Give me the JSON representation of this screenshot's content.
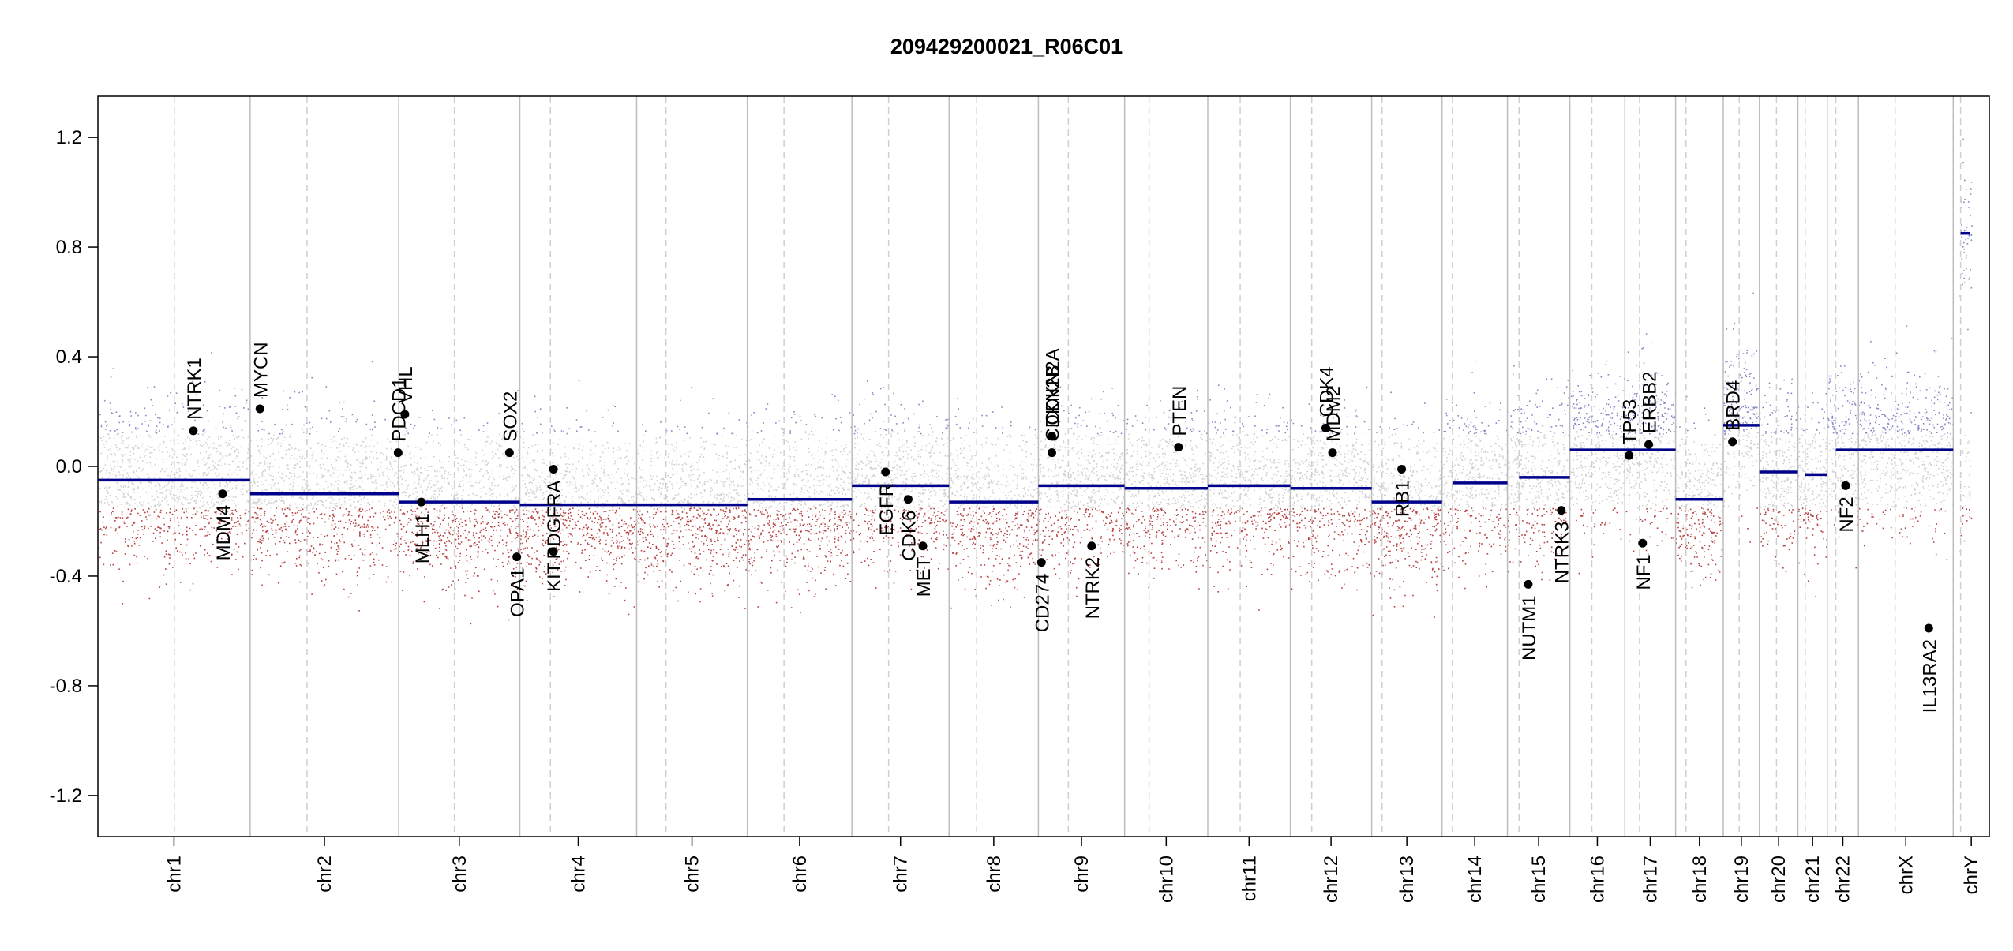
{
  "chart_data": {
    "type": "scatter",
    "title": "209429200021_R06C01",
    "xlabel": "",
    "ylabel": "",
    "ylim": [
      -1.35,
      1.35
    ],
    "yticks": [
      1.2,
      0.8,
      0.4,
      0.0,
      -0.4,
      -0.8,
      -1.2
    ],
    "ytick_labels": [
      "1.2",
      "0.8",
      "0.4",
      "0.0",
      "-0.4",
      "-0.8",
      "-1.2"
    ],
    "colors": {
      "high": "#5b5fb0",
      "neutral": "#a9a9a9",
      "low": "#a82020",
      "segment": "#00008b",
      "gene_marker": "#000000",
      "chrom_line": "#bdbdbd",
      "centromere_line": "#cfcfcf"
    },
    "chromosomes": [
      {
        "name": "chr1",
        "size": 249,
        "cen": 125,
        "seg": [
          [
            0,
            249,
            -0.05
          ]
        ]
      },
      {
        "name": "chr2",
        "size": 243,
        "cen": 93,
        "seg": [
          [
            0,
            243,
            -0.1
          ]
        ]
      },
      {
        "name": "chr3",
        "size": 198,
        "cen": 91,
        "seg": [
          [
            0,
            198,
            -0.13
          ]
        ]
      },
      {
        "name": "chr4",
        "size": 191,
        "cen": 50,
        "seg": [
          [
            0,
            191,
            -0.14
          ]
        ]
      },
      {
        "name": "chr5",
        "size": 181,
        "cen": 48,
        "seg": [
          [
            0,
            181,
            -0.14
          ]
        ]
      },
      {
        "name": "chr6",
        "size": 171,
        "cen": 60,
        "seg": [
          [
            0,
            171,
            -0.12
          ]
        ]
      },
      {
        "name": "chr7",
        "size": 159,
        "cen": 60,
        "seg": [
          [
            0,
            159,
            -0.07
          ]
        ]
      },
      {
        "name": "chr8",
        "size": 146,
        "cen": 45,
        "seg": [
          [
            0,
            146,
            -0.13
          ]
        ]
      },
      {
        "name": "chr9",
        "size": 141,
        "cen": 49,
        "seg": [
          [
            0,
            141,
            -0.07
          ]
        ]
      },
      {
        "name": "chr10",
        "size": 136,
        "cen": 40,
        "seg": [
          [
            0,
            136,
            -0.08
          ]
        ]
      },
      {
        "name": "chr11",
        "size": 135,
        "cen": 53,
        "seg": [
          [
            0,
            135,
            -0.07
          ]
        ]
      },
      {
        "name": "chr12",
        "size": 133,
        "cen": 35,
        "seg": [
          [
            0,
            133,
            -0.08
          ]
        ]
      },
      {
        "name": "chr13",
        "size": 115,
        "cen": 17,
        "seg": [
          [
            0,
            115,
            -0.13
          ]
        ]
      },
      {
        "name": "chr14",
        "size": 107,
        "cen": 17,
        "seg": [
          [
            17,
            107,
            -0.06
          ]
        ]
      },
      {
        "name": "chr15",
        "size": 102,
        "cen": 19,
        "seg": [
          [
            19,
            102,
            -0.04
          ]
        ]
      },
      {
        "name": "chr16",
        "size": 90,
        "cen": 36,
        "seg": [
          [
            0,
            90,
            0.06
          ]
        ]
      },
      {
        "name": "chr17",
        "size": 83,
        "cen": 24,
        "seg": [
          [
            0,
            83,
            0.06
          ]
        ]
      },
      {
        "name": "chr18",
        "size": 78,
        "cen": 17,
        "seg": [
          [
            0,
            78,
            -0.12
          ]
        ]
      },
      {
        "name": "chr19",
        "size": 59,
        "cen": 26,
        "seg": [
          [
            0,
            59,
            0.15
          ]
        ]
      },
      {
        "name": "chr20",
        "size": 63,
        "cen": 28,
        "seg": [
          [
            0,
            63,
            -0.02
          ]
        ]
      },
      {
        "name": "chr21",
        "size": 48,
        "cen": 12,
        "seg": [
          [
            12,
            48,
            -0.03
          ]
        ]
      },
      {
        "name": "chr22",
        "size": 51,
        "cen": 14,
        "seg": [
          [
            14,
            51,
            0.06
          ]
        ]
      },
      {
        "name": "chrX",
        "size": 155,
        "cen": 60,
        "seg": [
          [
            0,
            155,
            0.06
          ]
        ]
      },
      {
        "name": "chrY",
        "size": 59,
        "cen": 12,
        "seg": [
          [
            12,
            27,
            0.85
          ]
        ]
      }
    ],
    "genes": [
      {
        "name": "NTRK1",
        "chr": "chr1",
        "pos": 156,
        "value": 0.13,
        "label": "above"
      },
      {
        "name": "MDM4",
        "chr": "chr1",
        "pos": 204,
        "value": -0.1,
        "label": "below"
      },
      {
        "name": "MYCN",
        "chr": "chr2",
        "pos": 16,
        "value": 0.21,
        "label": "above"
      },
      {
        "name": "PDCD1",
        "chr": "chr2",
        "pos": 242,
        "value": 0.05,
        "label": "above"
      },
      {
        "name": "VHL",
        "chr": "chr3",
        "pos": 10,
        "value": 0.19,
        "label": "above"
      },
      {
        "name": "MLH1",
        "chr": "chr3",
        "pos": 37,
        "value": -0.13,
        "label": "below"
      },
      {
        "name": "SOX2",
        "chr": "chr3",
        "pos": 181,
        "value": 0.05,
        "label": "above"
      },
      {
        "name": "OPA1",
        "chr": "chr3",
        "pos": 193,
        "value": -0.33,
        "label": "below"
      },
      {
        "name": "KIT",
        "chr": "chr4",
        "pos": 55,
        "value": -0.31,
        "label": "below"
      },
      {
        "name": "PDGFRA",
        "chr": "chr4",
        "pos": 55,
        "value": -0.01,
        "label": "below"
      },
      {
        "name": "EGFR",
        "chr": "chr7",
        "pos": 55,
        "value": -0.02,
        "label": "below"
      },
      {
        "name": "CDK6",
        "chr": "chr7",
        "pos": 92,
        "value": -0.12,
        "label": "below"
      },
      {
        "name": "MET",
        "chr": "chr7",
        "pos": 116,
        "value": -0.29,
        "label": "below"
      },
      {
        "name": "CD274",
        "chr": "chr9",
        "pos": 5,
        "value": -0.35,
        "label": "below"
      },
      {
        "name": "CDKN2A",
        "chr": "chr9",
        "pos": 22,
        "value": 0.11,
        "label": "above"
      },
      {
        "name": "CDKN2B",
        "chr": "chr9",
        "pos": 22,
        "value": 0.05,
        "label": "above"
      },
      {
        "name": "NTRK2",
        "chr": "chr9",
        "pos": 87,
        "value": -0.29,
        "label": "below"
      },
      {
        "name": "PTEN",
        "chr": "chr10",
        "pos": 88,
        "value": 0.07,
        "label": "above"
      },
      {
        "name": "CDK4",
        "chr": "chr12",
        "pos": 58,
        "value": 0.14,
        "label": "above"
      },
      {
        "name": "MDM2",
        "chr": "chr12",
        "pos": 69,
        "value": 0.05,
        "label": "above"
      },
      {
        "name": "RB1",
        "chr": "chr13",
        "pos": 49,
        "value": -0.01,
        "label": "below"
      },
      {
        "name": "NUTM1",
        "chr": "chr15",
        "pos": 34,
        "value": -0.43,
        "label": "below"
      },
      {
        "name": "NTRK3",
        "chr": "chr15",
        "pos": 88,
        "value": -0.16,
        "label": "below"
      },
      {
        "name": "TP53",
        "chr": "chr17",
        "pos": 7,
        "value": 0.04,
        "label": "above"
      },
      {
        "name": "NF1",
        "chr": "chr17",
        "pos": 29,
        "value": -0.28,
        "label": "below"
      },
      {
        "name": "ERBB2",
        "chr": "chr17",
        "pos": 39,
        "value": 0.08,
        "label": "above"
      },
      {
        "name": "BRD4",
        "chr": "chr19",
        "pos": 15,
        "value": 0.09,
        "label": "above"
      },
      {
        "name": "NF2",
        "chr": "chr22",
        "pos": 30,
        "value": -0.07,
        "label": "below"
      },
      {
        "name": "IL13RA2",
        "chr": "chrX",
        "pos": 115,
        "value": -0.59,
        "label": "below"
      }
    ]
  }
}
